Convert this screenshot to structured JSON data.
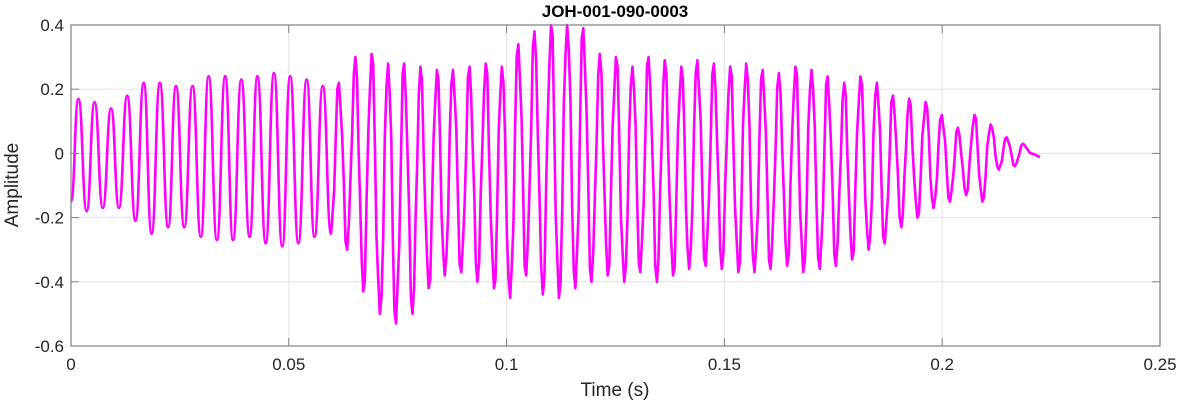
{
  "chart_data": {
    "type": "line",
    "title": "JOH-001-090-0003",
    "xlabel": "Time (s)",
    "ylabel": "Amplitude",
    "xlim": [
      0,
      0.25
    ],
    "ylim": [
      -0.6,
      0.4
    ],
    "xticks": [
      "0",
      "0.05",
      "0.1",
      "0.15",
      "0.2",
      "0.25"
    ],
    "yticks": [
      "-0.6",
      "-0.4",
      "-0.2",
      "0",
      "0.2",
      "0.4"
    ],
    "grid": true,
    "line_color": "#FF00FF",
    "series": [
      {
        "points": [
          [
            0,
            -0.15
          ],
          [
            0.0017,
            0.17
          ],
          [
            0.0036,
            -0.18
          ],
          [
            0.0054,
            0.16
          ],
          [
            0.0073,
            -0.17
          ],
          [
            0.0092,
            0.14
          ],
          [
            0.011,
            -0.17
          ],
          [
            0.0129,
            0.18
          ],
          [
            0.0148,
            -0.21
          ],
          [
            0.0167,
            0.22
          ],
          [
            0.0185,
            -0.25
          ],
          [
            0.0204,
            0.22
          ],
          [
            0.0223,
            -0.23
          ],
          [
            0.0241,
            0.21
          ],
          [
            0.026,
            -0.23
          ],
          [
            0.0279,
            0.21
          ],
          [
            0.0298,
            -0.26
          ],
          [
            0.0316,
            0.24
          ],
          [
            0.0335,
            -0.27
          ],
          [
            0.0354,
            0.24
          ],
          [
            0.0372,
            -0.27
          ],
          [
            0.0391,
            0.23
          ],
          [
            0.041,
            -0.26
          ],
          [
            0.0428,
            0.24
          ],
          [
            0.0447,
            -0.28
          ],
          [
            0.0466,
            0.25
          ],
          [
            0.0485,
            -0.29
          ],
          [
            0.0503,
            0.24
          ],
          [
            0.0522,
            -0.28
          ],
          [
            0.0541,
            0.23
          ],
          [
            0.0559,
            -0.26
          ],
          [
            0.0578,
            0.21
          ],
          [
            0.0597,
            -0.25
          ],
          [
            0.0615,
            0.22
          ],
          [
            0.0634,
            -0.3
          ],
          [
            0.0653,
            0.3
          ],
          [
            0.0671,
            -0.43
          ],
          [
            0.069,
            0.31
          ],
          [
            0.0709,
            -0.5
          ],
          [
            0.0728,
            0.28
          ],
          [
            0.0746,
            -0.53
          ],
          [
            0.0765,
            0.28
          ],
          [
            0.0784,
            -0.5
          ],
          [
            0.0802,
            0.27
          ],
          [
            0.0821,
            -0.42
          ],
          [
            0.084,
            0.26
          ],
          [
            0.0858,
            -0.38
          ],
          [
            0.0877,
            0.26
          ],
          [
            0.0896,
            -0.37
          ],
          [
            0.0915,
            0.27
          ],
          [
            0.0933,
            -0.4
          ],
          [
            0.0952,
            0.28
          ],
          [
            0.0971,
            -0.42
          ],
          [
            0.0989,
            0.27
          ],
          [
            0.1008,
            -0.45
          ],
          [
            0.1027,
            0.34
          ],
          [
            0.1045,
            -0.38
          ],
          [
            0.1064,
            0.38
          ],
          [
            0.1083,
            -0.44
          ],
          [
            0.1102,
            0.4
          ],
          [
            0.112,
            -0.45
          ],
          [
            0.1139,
            0.4
          ],
          [
            0.1158,
            -0.42
          ],
          [
            0.1176,
            0.39
          ],
          [
            0.1195,
            -0.4
          ],
          [
            0.1214,
            0.31
          ],
          [
            0.1232,
            -0.38
          ],
          [
            0.1251,
            0.3
          ],
          [
            0.127,
            -0.4
          ],
          [
            0.1289,
            0.27
          ],
          [
            0.1307,
            -0.37
          ],
          [
            0.1326,
            0.3
          ],
          [
            0.1345,
            -0.4
          ],
          [
            0.1363,
            0.29
          ],
          [
            0.1382,
            -0.38
          ],
          [
            0.1401,
            0.27
          ],
          [
            0.1419,
            -0.36
          ],
          [
            0.1438,
            0.29
          ],
          [
            0.1457,
            -0.35
          ],
          [
            0.1476,
            0.28
          ],
          [
            0.1494,
            -0.36
          ],
          [
            0.1513,
            0.27
          ],
          [
            0.1532,
            -0.37
          ],
          [
            0.155,
            0.28
          ],
          [
            0.1569,
            -0.37
          ],
          [
            0.1588,
            0.26
          ],
          [
            0.1606,
            -0.36
          ],
          [
            0.1625,
            0.25
          ],
          [
            0.1644,
            -0.35
          ],
          [
            0.1663,
            0.27
          ],
          [
            0.1681,
            -0.37
          ],
          [
            0.17,
            0.26
          ],
          [
            0.1719,
            -0.36
          ],
          [
            0.1737,
            0.24
          ],
          [
            0.1756,
            -0.35
          ],
          [
            0.1775,
            0.22
          ],
          [
            0.1793,
            -0.33
          ],
          [
            0.1812,
            0.24
          ],
          [
            0.1831,
            -0.3
          ],
          [
            0.185,
            0.22
          ],
          [
            0.1868,
            -0.28
          ],
          [
            0.1887,
            0.18
          ],
          [
            0.1906,
            -0.23
          ],
          [
            0.1924,
            0.17
          ],
          [
            0.1943,
            -0.2
          ],
          [
            0.1962,
            0.16
          ],
          [
            0.198,
            -0.17
          ],
          [
            0.1999,
            0.12
          ],
          [
            0.2018,
            -0.15
          ],
          [
            0.2036,
            0.08
          ],
          [
            0.2055,
            -0.13
          ],
          [
            0.2074,
            0.12
          ],
          [
            0.2092,
            -0.15
          ],
          [
            0.2111,
            0.09
          ],
          [
            0.213,
            -0.05
          ],
          [
            0.2148,
            0.05
          ],
          [
            0.2167,
            -0.04
          ],
          [
            0.2185,
            0.03
          ],
          [
            0.2204,
            0.0
          ],
          [
            0.2225,
            -0.01
          ]
        ]
      }
    ]
  }
}
